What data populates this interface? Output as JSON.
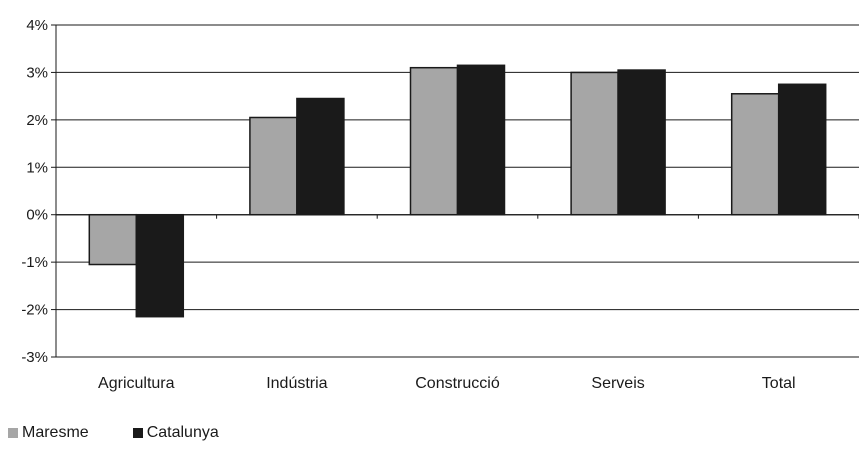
{
  "chart_data": {
    "type": "bar",
    "title": "",
    "xlabel": "",
    "ylabel": "",
    "categories": [
      "Agricultura",
      "Indústria",
      "Construcció",
      "Serveis",
      "Total"
    ],
    "series": [
      {
        "name": "Maresme",
        "color": "#a6a6a6",
        "values": [
          -1.05,
          2.05,
          3.1,
          3.0,
          2.55
        ]
      },
      {
        "name": "Catalunya",
        "color": "#1a1a1a",
        "values": [
          -2.15,
          2.45,
          3.15,
          3.05,
          2.75
        ]
      }
    ],
    "ylim": [
      -3,
      4
    ],
    "yticks": [
      "4%",
      "3%",
      "2%",
      "1%",
      "0%",
      "-1%",
      "-2%",
      "-3%"
    ],
    "grid": true,
    "legend_position": "bottom-left"
  }
}
